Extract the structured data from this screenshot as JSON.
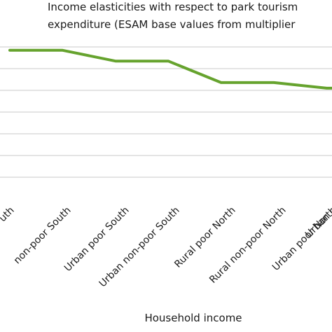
{
  "chart_data": {
    "type": "line",
    "title_lines": [
      "Income elasticities with respect to park tourism",
      "expenditure (ESAM base values from multiplier"
    ],
    "xlabel": "Household income",
    "ylabel": "",
    "categories": [
      "Rural poor South",
      "Rural non-poor South",
      "Urban poor South",
      "Urban non-poor South",
      "Rural poor North",
      "Rural non-poor North",
      "Urban poor North",
      "Urban non-poor North"
    ],
    "visible_tick_labels": [
      "uth",
      "non-poor South",
      "Urban poor South",
      "Urban non-poor South",
      "Rural poor North",
      "Rural non-poor North",
      "Urban poor North",
      "Urban n"
    ],
    "gridline_count": 7,
    "series": [
      {
        "values": [
          7.1,
          7.1,
          6.58,
          6.58,
          5.55,
          5.55,
          5.28,
          5.28
        ],
        "color": "#66a32e"
      }
    ],
    "ylim": [
      0,
      8
    ],
    "grid": true,
    "legend": "none"
  }
}
